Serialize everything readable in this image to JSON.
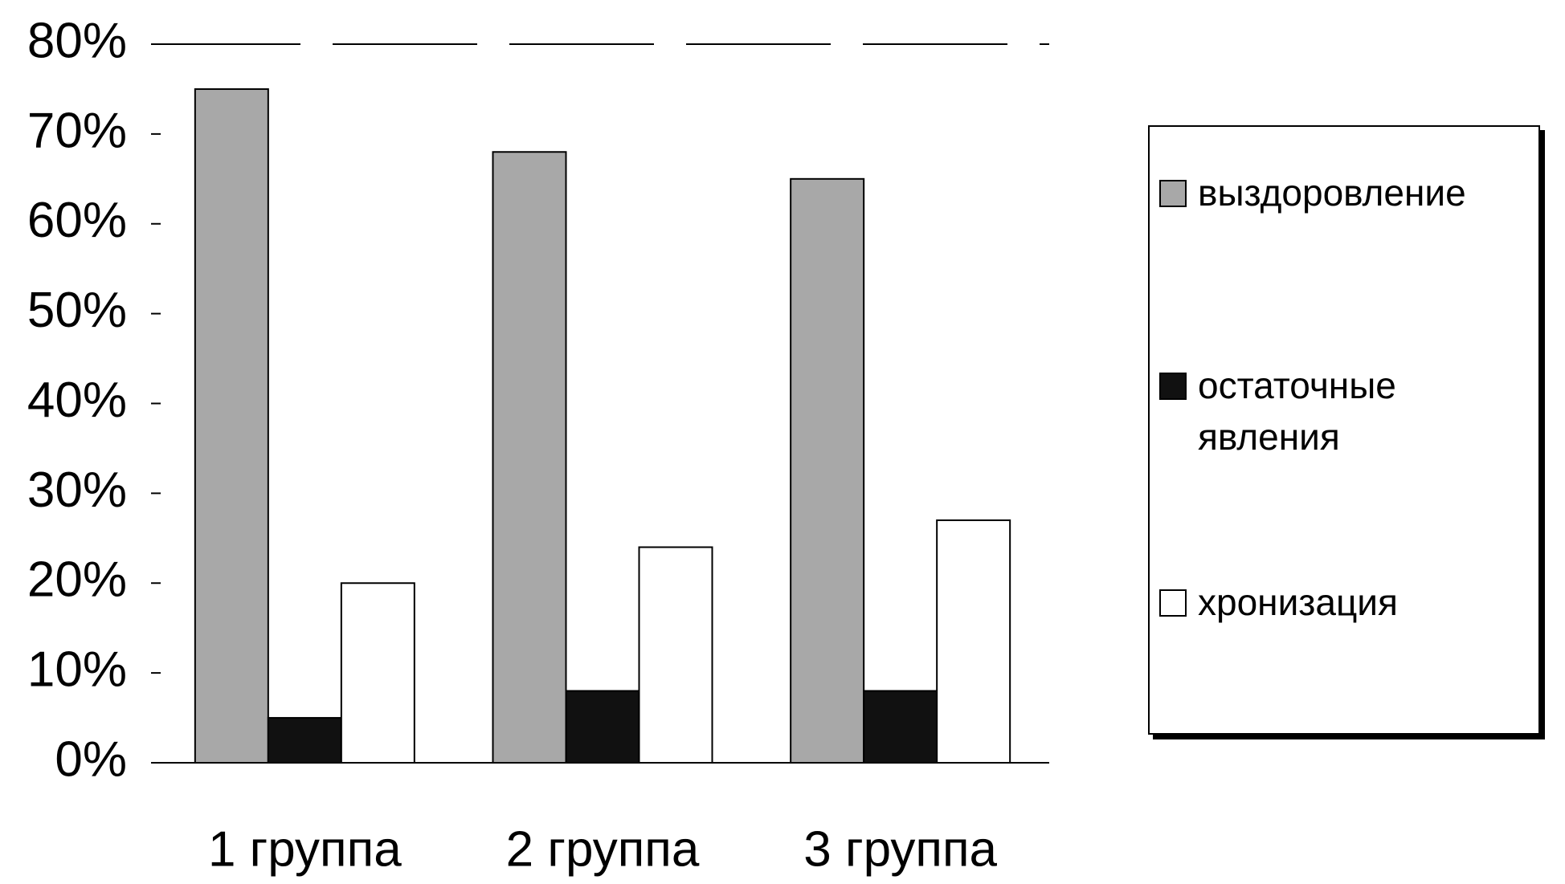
{
  "chart_data": {
    "type": "bar",
    "categories": [
      "1 группа",
      "2 группа",
      "3 группа"
    ],
    "series": [
      {
        "name": "выздоровление",
        "color": "#a8a8a8",
        "values": [
          75,
          68,
          65
        ]
      },
      {
        "name": "остаточные явления",
        "color": "#111111",
        "values": [
          5,
          8,
          8
        ]
      },
      {
        "name": "хронизация",
        "color": "#ffffff",
        "values": [
          20,
          24,
          27
        ]
      }
    ],
    "ylim": [
      0,
      80
    ],
    "yticks": [
      {
        "value": 0,
        "label": "0%"
      },
      {
        "value": 10,
        "label": "10%"
      },
      {
        "value": 20,
        "label": "20%"
      },
      {
        "value": 30,
        "label": "30%"
      },
      {
        "value": 40,
        "label": "40%"
      },
      {
        "value": 50,
        "label": "50%"
      },
      {
        "value": 60,
        "label": "60%"
      },
      {
        "value": 70,
        "label": "70%"
      },
      {
        "value": 80,
        "label": "80%"
      }
    ],
    "grid": false,
    "legend": "right"
  }
}
